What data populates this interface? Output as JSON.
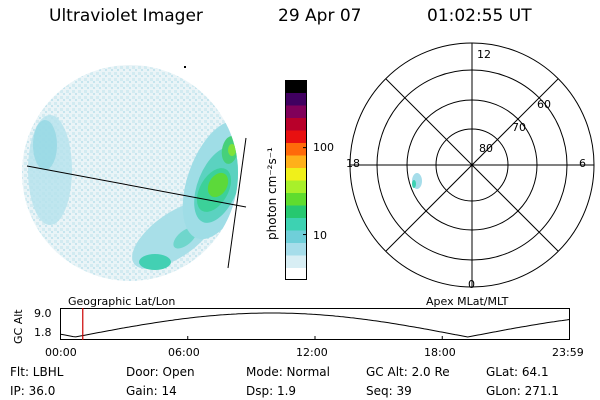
{
  "header": {
    "title": "Ultraviolet Imager",
    "date": "29 Apr 07",
    "time": "01:02:55 UT"
  },
  "colorbar": {
    "unit_label": "photon cm⁻²s⁻¹",
    "tick_labels": [
      "100",
      "10"
    ],
    "tick_values": [
      100,
      10
    ],
    "range": [
      3,
      600
    ],
    "scale": "log",
    "colors": [
      "#ffffff",
      "#d8eef4",
      "#a6ddea",
      "#6fcfd9",
      "#3dd2b2",
      "#26c870",
      "#5fdc2e",
      "#a8f02a",
      "#f0f01a",
      "#ffb01a",
      "#ff6a0a",
      "#e81010",
      "#b8002a",
      "#80005a",
      "#400060",
      "#000000"
    ]
  },
  "polar_plot": {
    "clock_labels": [
      "12",
      "18",
      "6",
      "0"
    ],
    "lat_labels": [
      "60",
      "70",
      "80"
    ],
    "lat_values": [
      60,
      70,
      80
    ]
  },
  "timeline": {
    "ylabel": "GC Alt",
    "y_ticks": [
      "9.0",
      "1.8"
    ],
    "left_title": "Geographic Lat/Lon",
    "right_title": "Apex MLat/MLT",
    "x_ticks": [
      "00:00",
      "06:00",
      "12:00",
      "18:00",
      "23:59"
    ],
    "current_time_hours": 1.05,
    "colors": {
      "marker": "#cc0000",
      "curve": "#000000"
    }
  },
  "info": {
    "filter": "Flt: LBHL",
    "ip": "IP: 36.0",
    "door": "Door: Open",
    "gain": "Gain: 14",
    "mode": "Mode: Normal",
    "dsp": "Dsp:    1.9",
    "gc_alt": "GC Alt: 2.0 Re",
    "seq": "Seq: 39",
    "glat": "GLat:  64.1",
    "glon": "GLon: 271.1"
  }
}
